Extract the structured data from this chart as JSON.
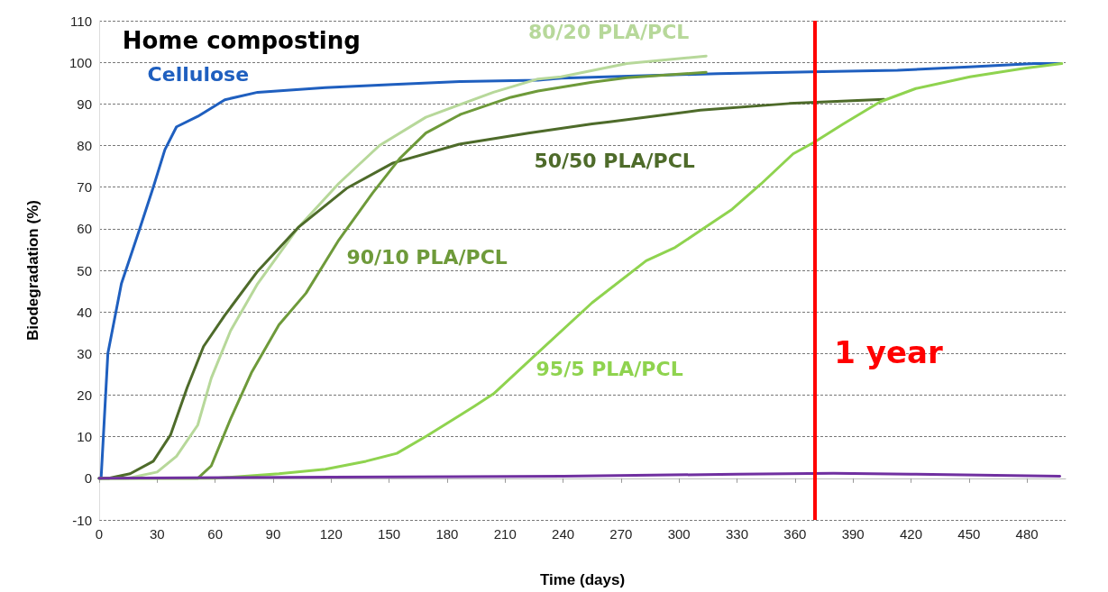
{
  "chart_data": {
    "type": "line",
    "title": "Home composting",
    "xlabel": "Time (days)",
    "ylabel": "Biodegradation (%)",
    "xlim": [
      0,
      500
    ],
    "xticks": [
      0,
      30,
      60,
      90,
      120,
      150,
      180,
      210,
      240,
      270,
      300,
      330,
      360,
      390,
      420,
      450,
      480
    ],
    "ylim": [
      -10,
      110
    ],
    "yticks": [
      -10,
      0,
      10,
      20,
      30,
      40,
      50,
      60,
      70,
      80,
      90,
      100,
      110
    ],
    "grid": "y",
    "legend": false,
    "marker": "none",
    "line_style": "solid",
    "ref_lines": [
      {
        "axis": "x",
        "value": 370,
        "label": "1 year",
        "color": "#ff0000"
      }
    ],
    "series": [
      {
        "name": "Cellulose",
        "color": "#1f5fbf",
        "x": [
          0,
          1,
          4.5,
          11.5,
          21,
          28,
          34,
          40,
          51,
          65,
          82,
          117,
          152,
          187,
          227,
          239,
          320,
          368,
          413,
          450,
          484,
          497
        ],
        "values": [
          0,
          0,
          30,
          46.8,
          60,
          70,
          79,
          84.5,
          87,
          91,
          92.8,
          93.9,
          94.7,
          95.4,
          95.7,
          96.2,
          97.3,
          97.7,
          98.1,
          98.9,
          99.7,
          99.7
        ]
      },
      {
        "name": "80/20 PLA/PCL",
        "color": "#b7d89a",
        "x": [
          0,
          15,
          30,
          40,
          51,
          58,
          68,
          82,
          103,
          124,
          145,
          169,
          204,
          227,
          239,
          273,
          314
        ],
        "values": [
          0,
          0,
          1.5,
          5.3,
          12.8,
          24.1,
          35.5,
          46.8,
          60.3,
          70.9,
          80,
          86.8,
          92.8,
          96,
          96.5,
          99.7,
          101.5
        ]
      },
      {
        "name": "50/50 PLA/PCL",
        "color": "#4e6b2a",
        "x": [
          0,
          5,
          16,
          28,
          37,
          45.5,
          54,
          65,
          82,
          103,
          128,
          152,
          187,
          222,
          255,
          264,
          311,
          357,
          406
        ],
        "values": [
          0,
          0,
          1.1,
          4.1,
          10.5,
          21.8,
          31.7,
          39.2,
          49.8,
          60.3,
          69.7,
          75.8,
          80.4,
          83,
          85.2,
          85.7,
          88.5,
          90.1,
          91.1
        ]
      },
      {
        "name": "90/10 PLA/PCL",
        "color": "#6e9a3a",
        "x": [
          0,
          51,
          58,
          68,
          79,
          93,
          107,
          124,
          141.5,
          155.5,
          169,
          187,
          213,
          227,
          255,
          273,
          314
        ],
        "values": [
          0,
          0,
          3,
          14.3,
          25.6,
          36.9,
          44.5,
          57.3,
          68.6,
          76.9,
          83,
          87.5,
          91.6,
          93.1,
          95.2,
          96.3,
          97.6
        ]
      },
      {
        "name": "95/5 PLA/PCL",
        "color": "#8fd34f",
        "x": [
          0,
          60,
          93,
          117,
          138,
          154,
          169.5,
          194,
          204,
          227,
          255,
          283,
          298,
          327.5,
          342.5,
          359,
          370,
          385,
          404,
          422.5,
          450.5,
          478,
          498
        ],
        "values": [
          0,
          0,
          1.1,
          2.2,
          4.1,
          6,
          10.2,
          17.3,
          20.3,
          30.2,
          42.2,
          52.3,
          55.5,
          64.7,
          70.8,
          78,
          80.8,
          85.2,
          90.5,
          93.7,
          96.5,
          98.5,
          99.7
        ]
      },
      {
        "color": "#7030a0",
        "x": [
          0,
          120,
          240,
          330,
          380,
          420,
          497
        ],
        "values": [
          0,
          0.3,
          0.5,
          1,
          1.2,
          1,
          0.5
        ]
      }
    ]
  }
}
